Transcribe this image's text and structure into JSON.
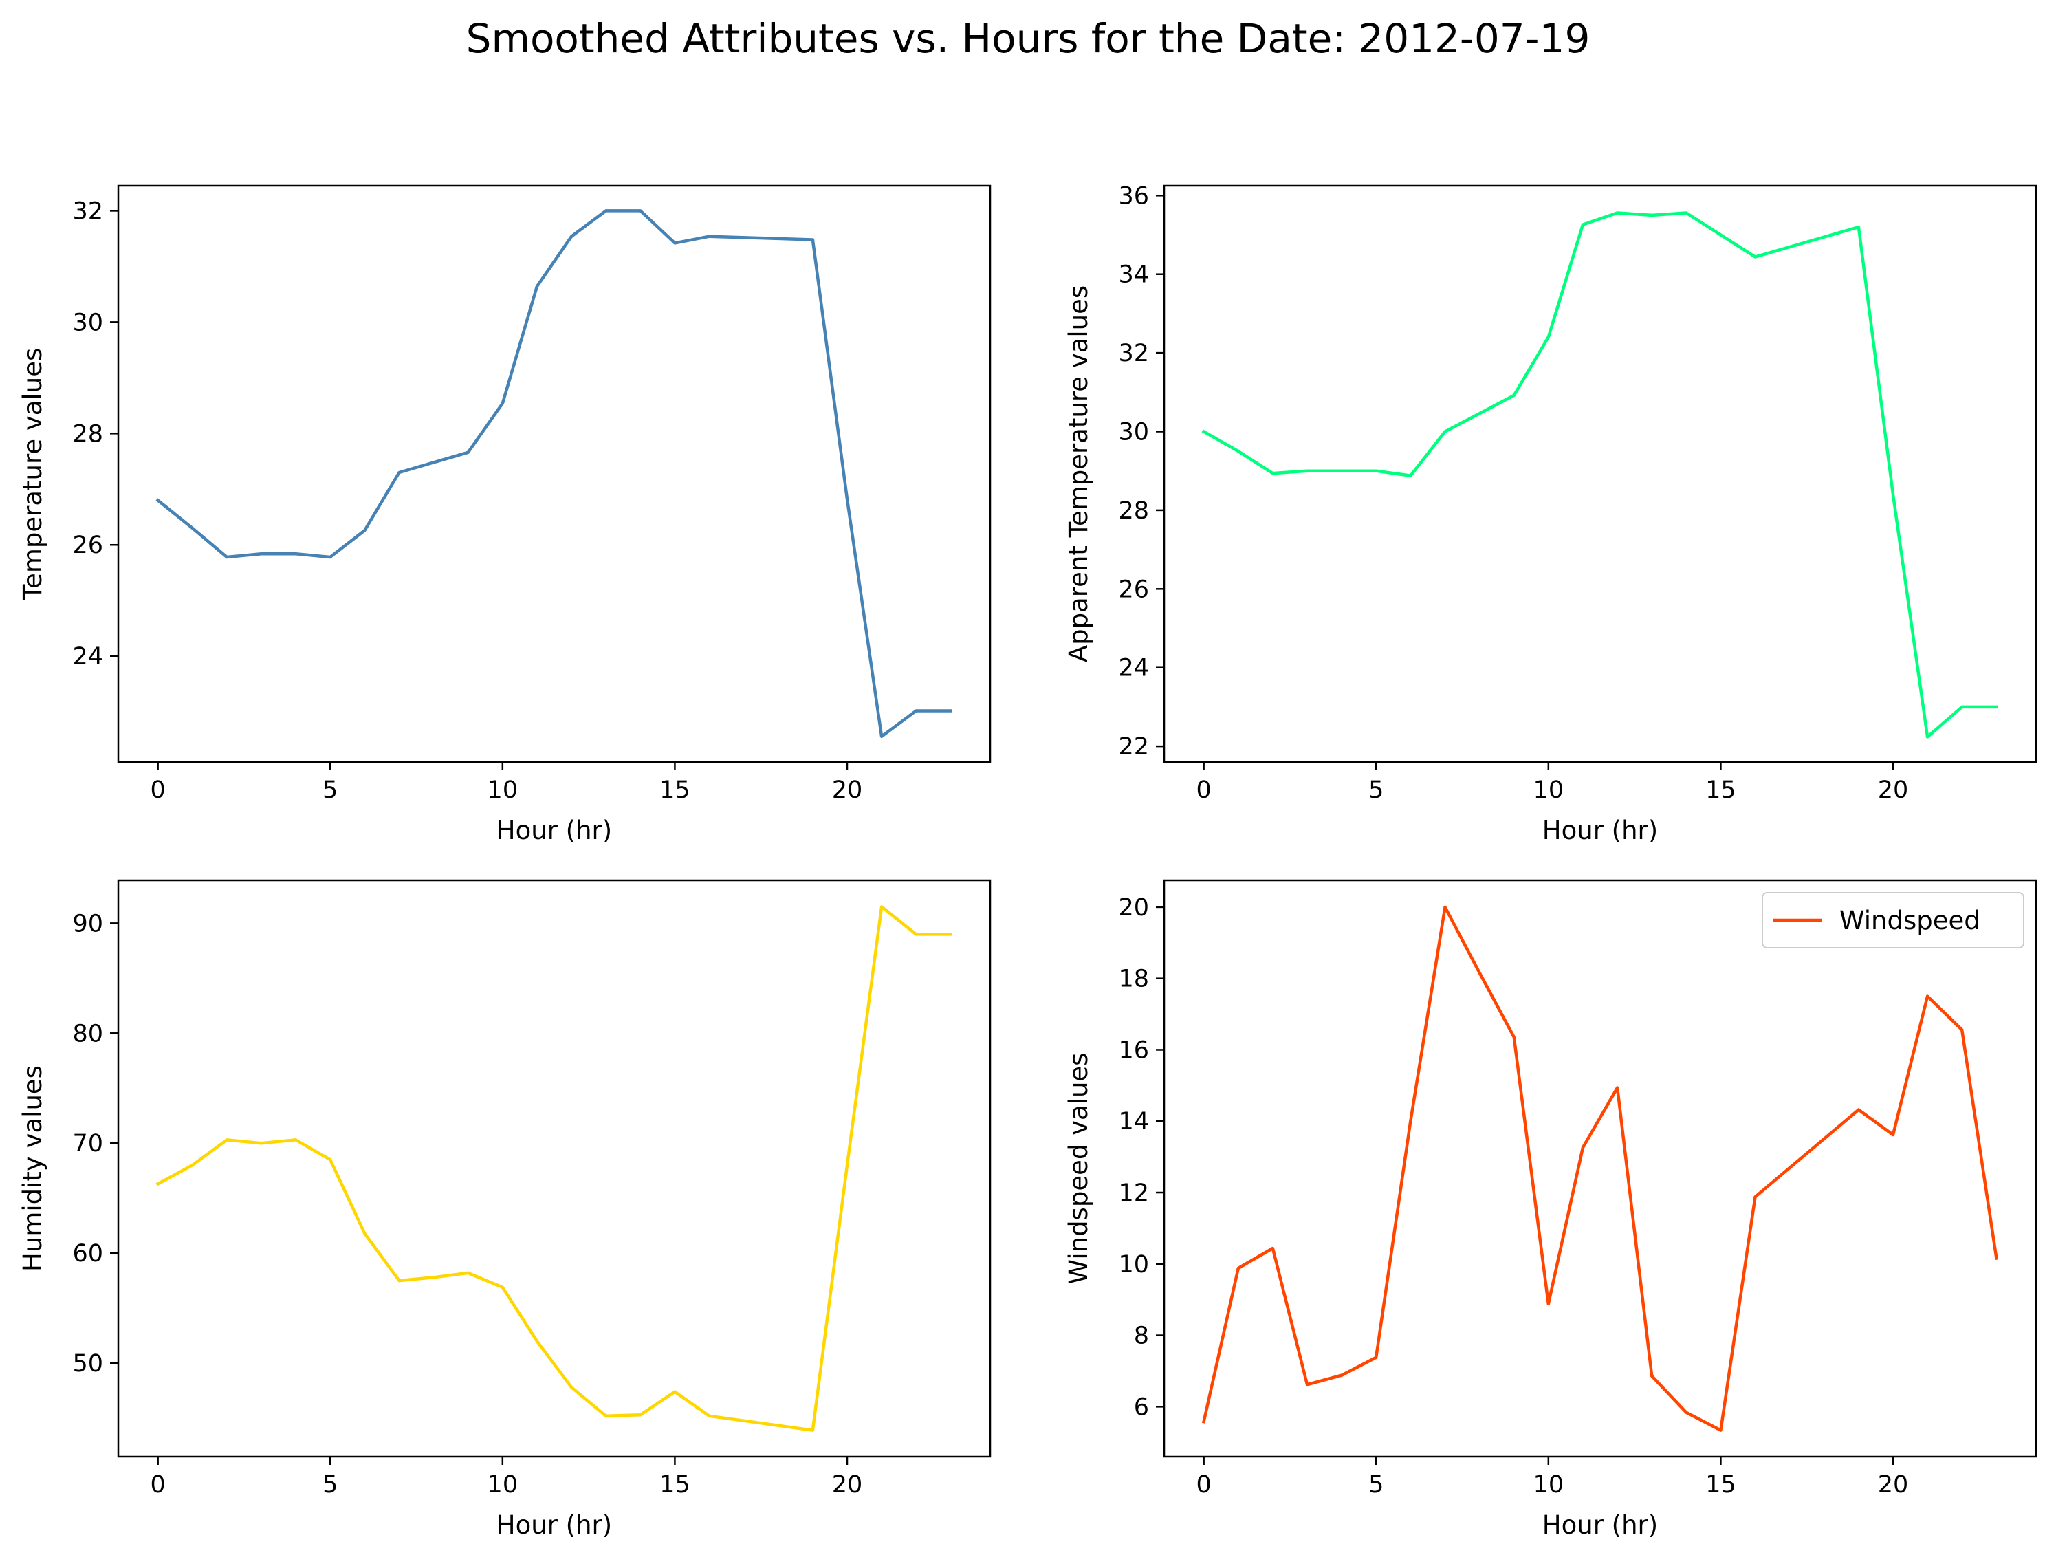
{
  "suptitle": "Smoothed Attributes vs. Hours for the Date: 2012-07-19",
  "chart_data": [
    {
      "type": "line",
      "xlabel": "Hour (hr)",
      "ylabel": "Temperature values",
      "color": "#4682b4",
      "x": [
        0,
        1,
        2,
        3,
        4,
        5,
        6,
        7,
        8,
        9,
        10,
        11,
        12,
        13,
        14,
        15,
        16,
        19,
        20,
        21,
        22,
        23
      ],
      "values": [
        26.8,
        26.3,
        25.78,
        25.84,
        25.84,
        25.78,
        26.26,
        27.3,
        27.48,
        27.66,
        28.54,
        30.64,
        31.54,
        32.0,
        32.0,
        31.42,
        31.54,
        31.48,
        26.82,
        22.56,
        23.02,
        23.02
      ],
      "xlim": [
        -1.15,
        24.15
      ],
      "ylim": [
        22.1,
        32.45
      ],
      "xticks": [
        0,
        5,
        10,
        15,
        20
      ],
      "yticks": [
        24,
        26,
        28,
        30,
        32
      ],
      "legend": null
    },
    {
      "type": "line",
      "xlabel": "Hour (hr)",
      "ylabel": "Apparent Temperature values",
      "color": "#00ff7f",
      "x": [
        0,
        1,
        2,
        3,
        4,
        5,
        6,
        7,
        8,
        9,
        10,
        11,
        12,
        13,
        14,
        15,
        16,
        19,
        20,
        21,
        22,
        23
      ],
      "values": [
        30.0,
        29.5,
        28.94,
        29.0,
        29.0,
        29.0,
        28.88,
        30.0,
        30.46,
        30.92,
        32.4,
        35.26,
        35.56,
        35.5,
        35.56,
        35.0,
        34.44,
        35.2,
        28.4,
        22.24,
        23.0,
        23.0
      ],
      "xlim": [
        -1.15,
        24.15
      ],
      "ylim": [
        21.6,
        36.25
      ],
      "xticks": [
        0,
        5,
        10,
        15,
        20
      ],
      "yticks": [
        22,
        24,
        26,
        28,
        30,
        32,
        34,
        36
      ],
      "legend": null
    },
    {
      "type": "line",
      "xlabel": "Hour (hr)",
      "ylabel": "Humidity values",
      "color": "#ffd700",
      "x": [
        0,
        1,
        2,
        3,
        4,
        5,
        6,
        7,
        8,
        9,
        10,
        11,
        12,
        13,
        14,
        15,
        16,
        19,
        20,
        21,
        22,
        23
      ],
      "values": [
        66.3,
        68.0,
        70.3,
        70.0,
        70.3,
        68.5,
        61.8,
        57.5,
        57.8,
        58.2,
        56.9,
        52.0,
        47.8,
        45.2,
        45.3,
        47.4,
        45.2,
        43.9,
        68.0,
        91.5,
        89.0,
        89.0
      ],
      "xlim": [
        -1.15,
        24.15
      ],
      "ylim": [
        41.5,
        93.9
      ],
      "xticks": [
        0,
        5,
        10,
        15,
        20
      ],
      "yticks": [
        50,
        60,
        70,
        80,
        90
      ],
      "legend": null
    },
    {
      "type": "line",
      "xlabel": "Hour (hr)",
      "ylabel": "Windspeed values",
      "color": "#ff4500",
      "x": [
        0,
        1,
        2,
        3,
        4,
        5,
        6,
        7,
        8,
        9,
        10,
        11,
        12,
        13,
        14,
        15,
        16,
        19,
        20,
        21,
        22,
        23
      ],
      "values": [
        5.58,
        9.88,
        10.44,
        6.62,
        6.88,
        7.38,
        14.0,
        20.0,
        18.16,
        16.36,
        8.88,
        13.26,
        14.94,
        6.86,
        5.84,
        5.34,
        11.88,
        14.32,
        13.62,
        17.5,
        16.56,
        10.16
      ],
      "xlim": [
        -1.15,
        24.15
      ],
      "ylim": [
        4.6,
        20.75
      ],
      "xticks": [
        0,
        5,
        10,
        15,
        20
      ],
      "yticks": [
        6,
        8,
        10,
        12,
        14,
        16,
        18,
        20
      ],
      "legend": "Windspeed",
      "legend_loc": "upper right"
    }
  ]
}
